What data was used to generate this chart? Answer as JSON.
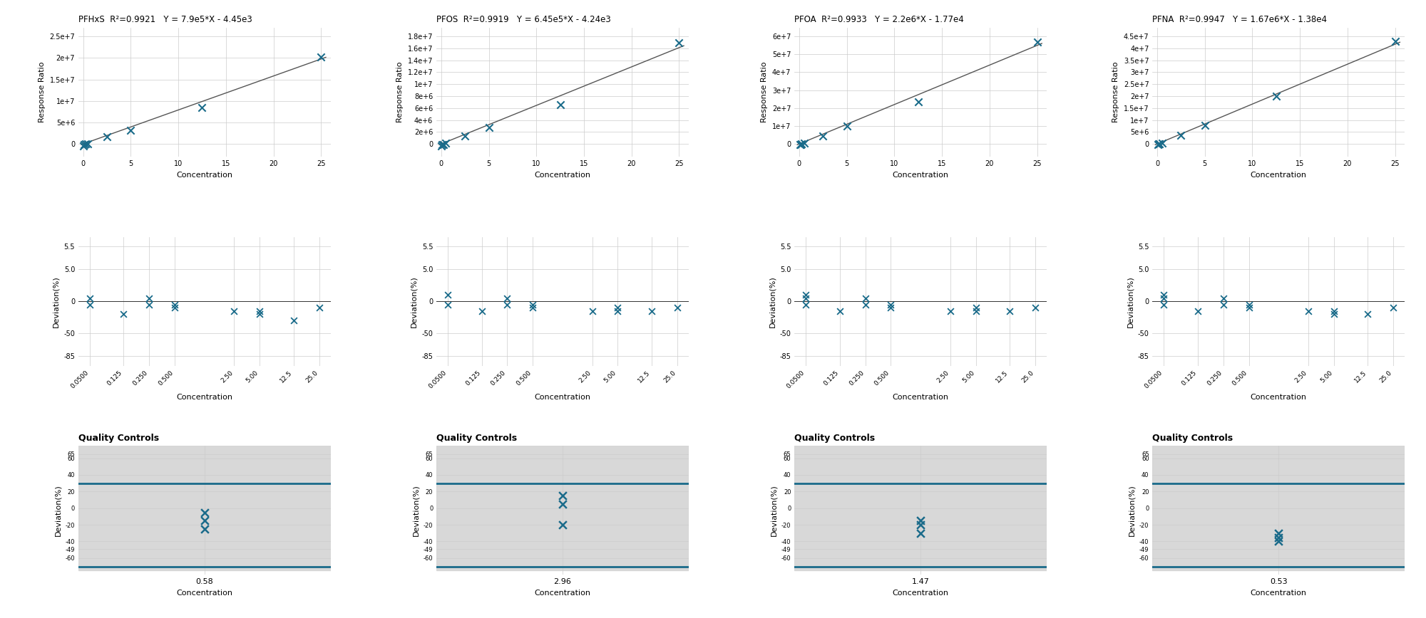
{
  "compounds": [
    "PFHxS",
    "PFOS",
    "PFOA",
    "PFNA"
  ],
  "titles": [
    "PFHxS  R²=0.9921   Y = 7.9e5*X - 4.45e3",
    "PFOS  R²=0.9919   Y = 6.45e5*X - 4.24e3",
    "PFOA  R²=0.9933   Y = 2.2e6*X - 1.77e4",
    "PFNA  R²=0.9947   Y = 1.67e6*X - 1.38e4"
  ],
  "slopes": [
    790000,
    645000,
    2200000,
    1670000
  ],
  "intercepts": [
    -4450,
    -4240,
    -17700,
    -13800
  ],
  "cal_y_data": {
    "PFHxS": [
      -500000,
      -200000,
      -50000,
      50000,
      1600000,
      3100000,
      8500000,
      20200000
    ],
    "PFOS": [
      -300000,
      -150000,
      -100000,
      100000,
      1300000,
      2700000,
      6600000,
      16900000
    ],
    "PFOA": [
      -500000,
      -200000,
      100000,
      500000,
      4500000,
      9800000,
      23500000,
      57000000
    ],
    "PFNA": [
      -300000,
      -100000,
      100000,
      300000,
      3700000,
      7800000,
      20000000,
      43000000
    ]
  },
  "cal_x_data": [
    0.05,
    0.125,
    0.25,
    0.5,
    2.5,
    5.0,
    12.5,
    25.0
  ],
  "dev_x_pos": [
    0.05,
    0.125,
    0.25,
    0.5,
    2.5,
    5.0,
    12.5,
    25.0
  ],
  "dev_x_labels": [
    "0.0500",
    "0.125",
    "0.250",
    "0.500",
    "2.50",
    "5.00",
    "12.5",
    "25.0"
  ],
  "dev_y_data": {
    "PFHxS": [
      [
        -5,
        5
      ],
      [
        -20
      ],
      [
        -5,
        5
      ],
      [
        -10,
        -5
      ],
      [
        -15
      ],
      [
        -20,
        -15
      ],
      [
        -30
      ],
      [
        -10
      ]
    ],
    "PFOS": [
      [
        -5,
        10
      ],
      [
        -15
      ],
      [
        -5,
        5
      ],
      [
        -10,
        -5
      ],
      [
        -15
      ],
      [
        -15,
        -10
      ],
      [
        -15
      ],
      [
        -10
      ]
    ],
    "PFOA": [
      [
        -5,
        5,
        10
      ],
      [
        -15
      ],
      [
        -5,
        5
      ],
      [
        -10,
        -5
      ],
      [
        -15
      ],
      [
        -15,
        -10
      ],
      [
        -15
      ],
      [
        -10
      ]
    ],
    "PFNA": [
      [
        -5,
        5,
        10
      ],
      [
        -15
      ],
      [
        -5,
        5
      ],
      [
        -10,
        -5
      ],
      [
        -15
      ],
      [
        -20,
        -15
      ],
      [
        -20
      ],
      [
        -10
      ]
    ]
  },
  "qc_concentrations": [
    0.58,
    2.96,
    1.47,
    0.53
  ],
  "qc_y_data": {
    "PFHxS": [
      -5,
      -15,
      -25
    ],
    "PFOS": [
      15,
      5,
      -20
    ],
    "PFOA": [
      -15,
      -20,
      -30
    ],
    "PFNA": [
      -30,
      -35,
      -40
    ]
  },
  "scatter_color": "#1a6b8a",
  "line_color": "#555555",
  "background_color": "#ffffff",
  "grid_color": "#cccccc",
  "band_outer_color": "#d4d4d4",
  "band_inner_color": "#1a6b8a",
  "ylabel_calibration": "Response Ratio",
  "ylabel_deviation": "Deviation(%)",
  "xlabel_calibration": "Concentration",
  "xlabel_deviation": "Concentration",
  "xlabel_qc": "Concentration",
  "qc_title": "Quality Controls",
  "yticks_pfhxs": [
    0,
    5000000,
    10000000,
    15000000,
    20000000,
    25000000
  ],
  "ytick_labels_pfhxs": [
    "0",
    "5e+6",
    "1e+7",
    "1.5e+7",
    "2e+7",
    "2.5e+7"
  ],
  "yticks_pfos": [
    0,
    2000000,
    4000000,
    6000000,
    8000000,
    10000000,
    12000000,
    14000000,
    16000000,
    18000000
  ],
  "ytick_labels_pfos": [
    "0",
    "2e+6",
    "4e+6",
    "6e+6",
    "8e+6",
    "1e+7",
    "1.2e+7",
    "1.4e+7",
    "1.6e+7",
    "1.8e+7"
  ],
  "yticks_pfoa": [
    0,
    10000000,
    20000000,
    30000000,
    40000000,
    50000000,
    60000000
  ],
  "ytick_labels_pfoa": [
    "0",
    "1e+7",
    "2e+7",
    "3e+7",
    "4e+7",
    "5e+7",
    "6e+7"
  ],
  "yticks_pfna": [
    0,
    5000000,
    10000000,
    15000000,
    20000000,
    25000000,
    30000000,
    35000000,
    40000000,
    45000000
  ],
  "ytick_labels_pfna": [
    "0",
    "5e+6",
    "1e+7",
    "1.5e+7",
    "2e+7",
    "2.5e+7",
    "3e+7",
    "3.5e+7",
    "4e+7",
    "4.5e+7"
  ]
}
